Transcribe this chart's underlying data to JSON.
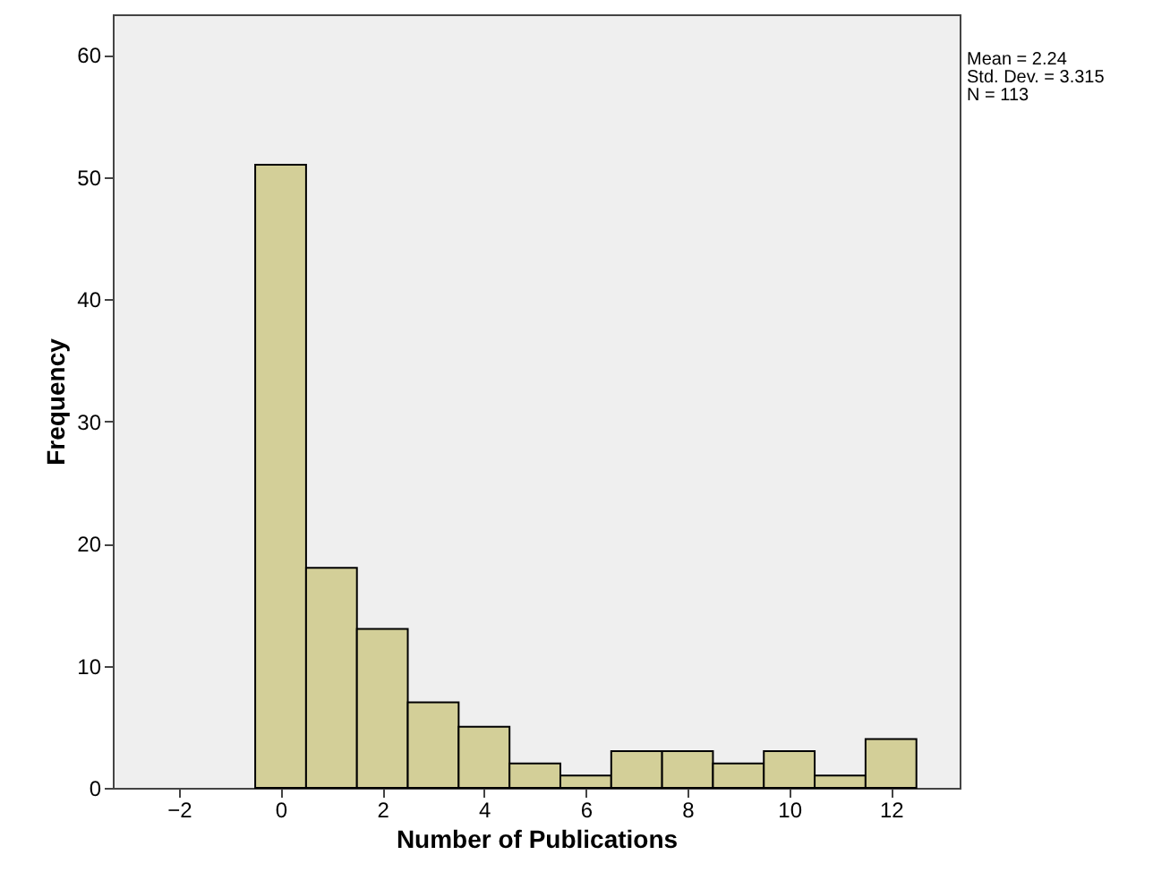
{
  "chart_data": {
    "type": "histogram",
    "xlabel": "Number of Publications",
    "ylabel": "Frequency",
    "bins": [
      -0.5,
      0.5,
      1.5,
      2.5,
      3.5,
      4.5,
      5.5,
      6.5,
      7.5,
      8.5,
      9.5,
      10.5,
      11.5,
      12.5
    ],
    "values": [
      51,
      18,
      13,
      7,
      5,
      2,
      1,
      3,
      3,
      2,
      3,
      1,
      4
    ],
    "color": "#d3cf98",
    "xlim": [
      -3.3,
      13.35
    ],
    "xticks": [
      -2,
      0,
      2,
      4,
      6,
      8,
      10,
      12
    ],
    "ylim": [
      0,
      63.3
    ],
    "yticks": [
      0,
      10,
      20,
      30,
      40,
      50,
      60
    ],
    "grid": false,
    "annotations": [
      "Mean = 2.24",
      "Std. Dev. = 3.315",
      "N = 113"
    ]
  }
}
